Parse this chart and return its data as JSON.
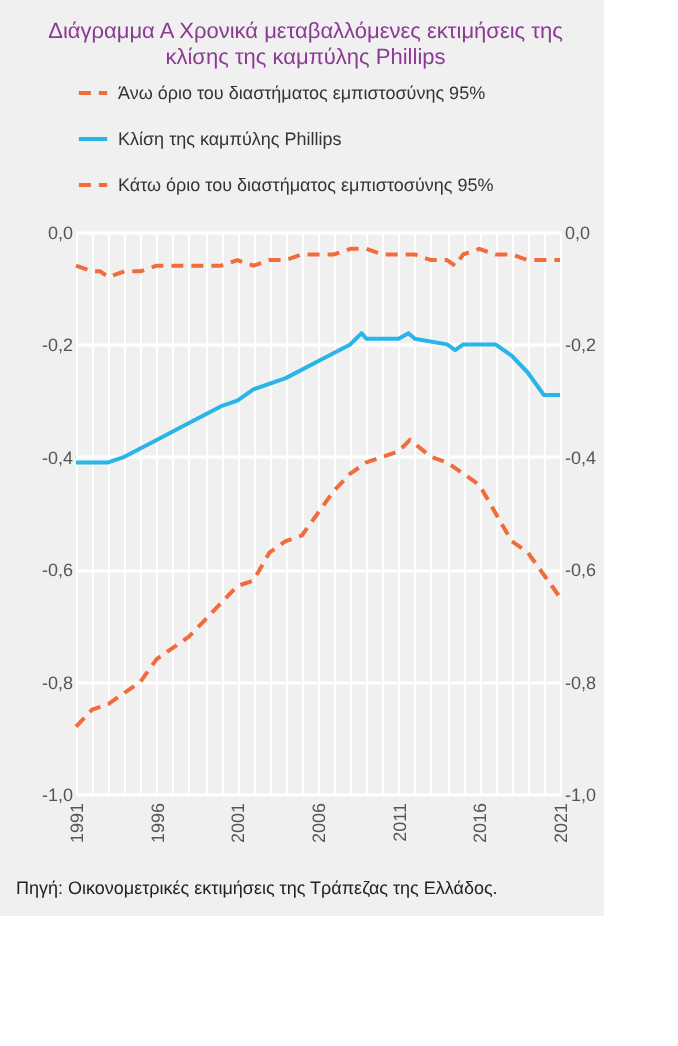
{
  "chart_data": {
    "type": "line",
    "title": "Διάγραμμα Α Χρονικά μεταβαλλόμενες εκτιμήσεις της κλίσης της καμπύλης Phillips",
    "annotations": [
      "Πηγή: Οικονομετρικές εκτιμήσεις της Τράπεζας της Ελλάδος."
    ],
    "series": [
      {
        "name": "Άνω όριο του διαστήματος εμπιστοσύνης 95%",
        "color": "#f26b3a",
        "line_style": "dashed",
        "x": [
          1991,
          1992,
          1992.5,
          1993,
          1994,
          1995,
          1996,
          1997,
          1998,
          1999,
          2000,
          2001,
          2002,
          2003,
          2004,
          2005,
          2006,
          2007,
          2008,
          2009,
          2010,
          2011,
          2012,
          2013,
          2014,
          2014.5,
          2015,
          2016,
          2017,
          2018,
          2019,
          2020,
          2021
        ],
        "values": [
          -0.06,
          -0.07,
          -0.07,
          -0.08,
          -0.07,
          -0.07,
          -0.06,
          -0.06,
          -0.06,
          -0.06,
          -0.06,
          -0.05,
          -0.06,
          -0.05,
          -0.05,
          -0.04,
          -0.04,
          -0.04,
          -0.03,
          -0.03,
          -0.04,
          -0.04,
          -0.04,
          -0.05,
          -0.05,
          -0.06,
          -0.04,
          -0.03,
          -0.04,
          -0.04,
          -0.05,
          -0.05,
          -0.05
        ]
      },
      {
        "name": "Κλίση της καμπύλης Phillips",
        "color": "#29b5e8",
        "line_style": "solid",
        "x": [
          1991,
          1993,
          1994,
          1996,
          1998,
          2000,
          2001,
          2002,
          2004,
          2006,
          2008,
          2008.7,
          2009,
          2011,
          2011.6,
          2012,
          2014,
          2014.5,
          2015,
          2017,
          2018,
          2019,
          2020,
          2021
        ],
        "values": [
          -0.41,
          -0.41,
          -0.4,
          -0.37,
          -0.34,
          -0.31,
          -0.3,
          -0.28,
          -0.26,
          -0.23,
          -0.2,
          -0.18,
          -0.19,
          -0.19,
          -0.18,
          -0.19,
          -0.2,
          -0.21,
          -0.2,
          -0.2,
          -0.22,
          -0.25,
          -0.29,
          -0.29
        ]
      },
      {
        "name": "Κάτω όριο του διαστήματος εμπιστοσύνης 95%",
        "color": "#f26b3a",
        "line_style": "dashed",
        "x": [
          1991,
          1992,
          1993,
          1994,
          1995,
          1996,
          1997,
          1998,
          1999,
          2000,
          2001,
          2002,
          2003,
          2004,
          2005,
          2006,
          2007,
          2008,
          2009,
          2010,
          2011,
          2011.7,
          2013,
          2014,
          2015,
          2016,
          2017,
          2018,
          2019,
          2020,
          2021
        ],
        "values": [
          -0.88,
          -0.85,
          -0.84,
          -0.82,
          -0.8,
          -0.76,
          -0.74,
          -0.72,
          -0.69,
          -0.66,
          -0.63,
          -0.62,
          -0.57,
          -0.55,
          -0.54,
          -0.5,
          -0.46,
          -0.43,
          -0.41,
          -0.4,
          -0.39,
          -0.37,
          -0.4,
          -0.41,
          -0.43,
          -0.45,
          -0.5,
          -0.55,
          -0.57,
          -0.61,
          -0.65
        ]
      }
    ],
    "xlim": [
      1991,
      2021
    ],
    "xticks": [
      1991,
      {
        "value": 1992,
        "label": null
      },
      {
        "value": 1993,
        "label": null
      },
      {
        "value": 1994,
        "label": null
      },
      {
        "value": 1995,
        "label": null
      },
      1996,
      {
        "value": 1997,
        "label": null
      },
      {
        "value": 1998,
        "label": null
      },
      {
        "value": 1999,
        "label": null
      },
      {
        "value": 2000,
        "label": null
      },
      2001,
      {
        "value": 2002,
        "label": null
      },
      {
        "value": 2003,
        "label": null
      },
      {
        "value": 2004,
        "label": null
      },
      {
        "value": 2005,
        "label": null
      },
      2006,
      {
        "value": 2007,
        "label": null
      },
      {
        "value": 2008,
        "label": null
      },
      {
        "value": 2009,
        "label": null
      },
      {
        "value": 2010,
        "label": null
      },
      2011,
      {
        "value": 2012,
        "label": null
      },
      {
        "value": 2013,
        "label": null
      },
      {
        "value": 2014,
        "label": null
      },
      {
        "value": 2015,
        "label": null
      },
      2016,
      {
        "value": 2017,
        "label": null
      },
      {
        "value": 2018,
        "label": null
      },
      {
        "value": 2019,
        "label": null
      },
      {
        "value": 2020,
        "label": null
      },
      2021
    ],
    "ylim": [
      -1.0,
      0.0
    ],
    "yticks": [
      {
        "value": 0.0,
        "label": "0,0"
      },
      {
        "value": -0.2,
        "label": "-0,2"
      },
      {
        "value": -0.4,
        "label": "-0,4"
      },
      {
        "value": -0.6,
        "label": "-0,6"
      },
      {
        "value": -0.8,
        "label": "-0,8"
      },
      {
        "value": -1.0,
        "label": "-1,0"
      }
    ],
    "y2lim": [
      -1.0,
      0.0
    ],
    "y2ticks": [
      {
        "value": 0.0,
        "label": "0,0"
      },
      {
        "value": -0.2,
        "label": "-0,2"
      },
      {
        "value": -0.4,
        "label": "-0,4"
      },
      {
        "value": -0.6,
        "label": "-0,6"
      },
      {
        "value": -0.8,
        "label": "-0,8"
      },
      {
        "value": -1.0,
        "label": "-1,0"
      }
    ],
    "grid": true,
    "legend": "top"
  }
}
